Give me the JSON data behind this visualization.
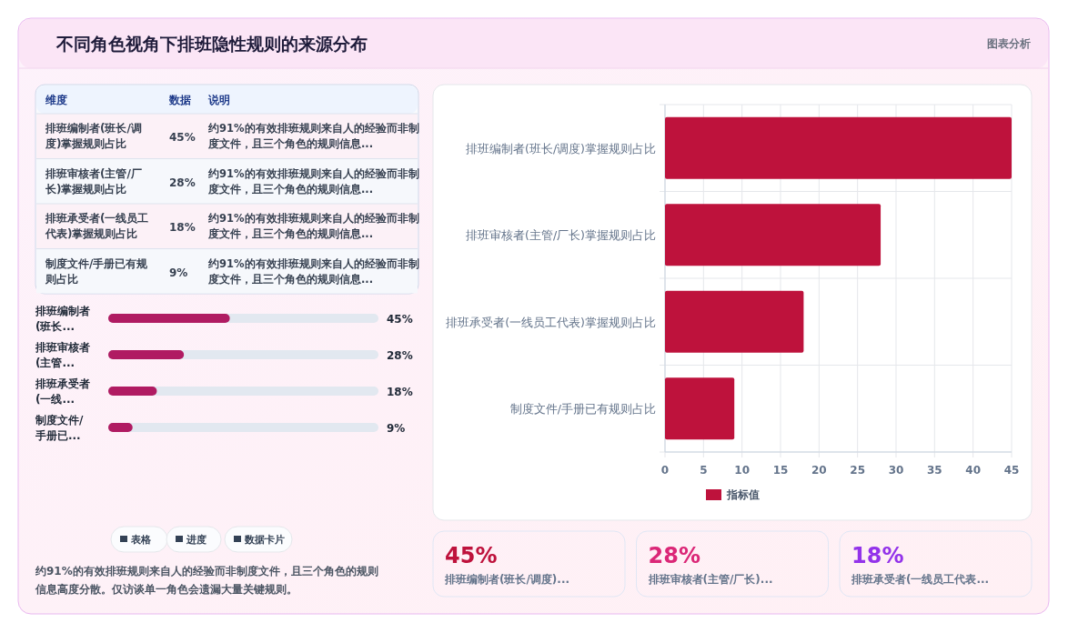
{
  "chart_data": [
    {
      "type": "other",
      "title": "不同角色视角下排班隐性规则的来源分布",
      "annotations": [
        "图表分析",
        "维度",
        "数据",
        "说明",
        "约91%的有效排班规则来自人的经验而非制度文件，且三个角色的规则信息..."
      ],
      "categories": [
        "排班编制者(班长/调度)掌握规则占比",
        "排班审核者(主管/厂长)掌握规则占比",
        "排班承受者(一线员工代表)掌握规则占比",
        "制度文件/手册已有规则占比"
      ],
      "values": [
        45,
        28,
        18,
        9
      ],
      "value_labels": [
        "45%",
        "28%",
        "18%",
        "9%"
      ]
    },
    {
      "type": "other",
      "categories": [
        "排班编制者(班长...",
        "排班审核者(主管...",
        "排班承受者(一线...",
        "制度文件/手册已..."
      ],
      "values": [
        45,
        28,
        18,
        9
      ],
      "value_labels": [
        "45%",
        "28%",
        "18%",
        "9%"
      ],
      "colors": [
        "#b01b62",
        "#b01b62",
        "#b01b62",
        "#b01b62"
      ],
      "annotations": [
        "表格",
        "进度",
        "数据卡片",
        "约91%的有效排班规则来自人的经验而非制度文件，且三个角色的规则信息高度分散。仅访谈单一角色会遗漏大量关键规则。"
      ]
    },
    {
      "type": "bar",
      "orientation": "horizontal",
      "categories": [
        "排班编制者(班长/调度)掌握规则占比",
        "排班审核者(主管/厂长)掌握规则占比",
        "排班承受者(一线员工代表)掌握规则占比",
        "制度文件/手册已有规则占比"
      ],
      "series": [
        {
          "name": "指标值",
          "color": "#be123c",
          "values": [
            45,
            28,
            18,
            9
          ]
        }
      ],
      "xlim": [
        0,
        45
      ],
      "xticks": [
        0,
        5,
        10,
        15,
        20,
        25,
        30,
        35,
        40,
        45
      ],
      "grid": true,
      "legend": "bottom"
    },
    {
      "type": "other",
      "categories": [
        "排班编制者(班长/调度)...",
        "排班审核者(主管/厂长)...",
        "排班承受者(一线员工代表..."
      ],
      "values": [
        45,
        28,
        18
      ],
      "value_labels": [
        "45%",
        "28%",
        "18%"
      ],
      "colors": [
        "#be123c",
        "#db2777",
        "#9333ea"
      ]
    }
  ]
}
